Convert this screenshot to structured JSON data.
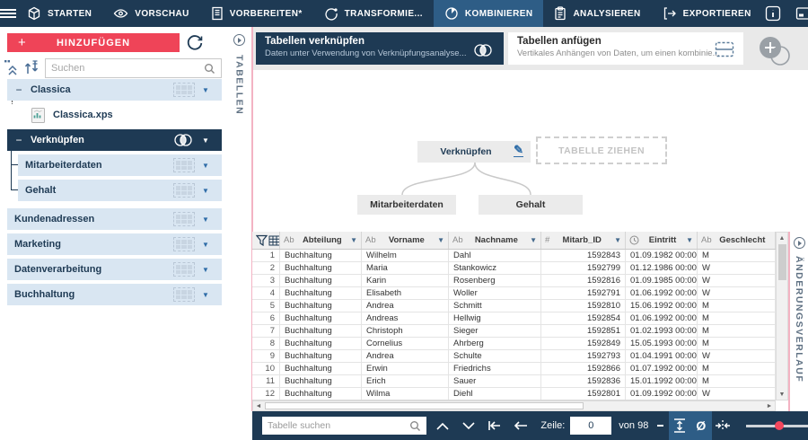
{
  "topbar": {
    "menu": [
      {
        "label": "STARTEN",
        "icon": "cube-icon",
        "active": false
      },
      {
        "label": "VORSCHAU",
        "icon": "eye-icon",
        "active": false
      },
      {
        "label": "VORBEREITEN*",
        "icon": "document-icon",
        "active": false
      },
      {
        "label": "TRANSFORMIE...",
        "icon": "transform-icon",
        "active": false
      },
      {
        "label": "KOMBINIEREN",
        "icon": "combine-icon",
        "active": true
      },
      {
        "label": "ANALYSIEREN",
        "icon": "clipboard-icon",
        "active": false
      },
      {
        "label": "EXPORTIEREN",
        "icon": "export-icon",
        "active": false
      }
    ]
  },
  "sidebar": {
    "add_label": "HINZUFÜGEN",
    "search_placeholder": "Suchen",
    "tree": [
      {
        "label": "Classica"
      },
      {
        "label": "Classica.xps"
      },
      {
        "label": "Verknüpfen"
      },
      {
        "label": "Mitarbeiterdaten"
      },
      {
        "label": "Gehalt"
      },
      {
        "label": "Kundenadressen"
      },
      {
        "label": "Marketing"
      },
      {
        "label": "Datenverarbeitung"
      },
      {
        "label": "Buchhaltung"
      }
    ]
  },
  "left_tab": "TABELLEN",
  "right_tab": "ÄNDERUNGSVERLAUF",
  "cards": {
    "join_title": "Tabellen verknüpfen",
    "join_subtitle": "Daten unter Verwendung von Verknüpfungsanalyse...",
    "append_title": "Tabellen anfügen",
    "append_subtitle": "Vertikales Anhängen von Daten, um einen kombinie..."
  },
  "join_diagram": {
    "root": "Verknüpfen",
    "drop_zone": "TABELLE ZIEHEN",
    "children": [
      "Mitarbeiterdaten",
      "Gehalt"
    ]
  },
  "table": {
    "headers": [
      {
        "prefix": "",
        "name": "",
        "type": "rownum"
      },
      {
        "prefix": "Ab",
        "name": "Abteilung",
        "arrow": true
      },
      {
        "prefix": "Ab",
        "name": "Vorname",
        "arrow": true
      },
      {
        "prefix": "Ab",
        "name": "Nachname",
        "arrow": true
      },
      {
        "prefix": "#",
        "name": "Mitarb_ID",
        "arrow": true
      },
      {
        "prefix": "clock",
        "name": "Eintritt",
        "arrow": true
      },
      {
        "prefix": "Ab",
        "name": "Geschlecht",
        "arrow": false
      }
    ],
    "rows": [
      [
        "1",
        "Buchhaltung",
        "Wilhelm",
        "Dahl",
        "1592843",
        "01.09.1982 00:00:00",
        "M"
      ],
      [
        "2",
        "Buchhaltung",
        "Maria",
        "Stankowicz",
        "1592799",
        "01.12.1986 00:00:00",
        "W"
      ],
      [
        "3",
        "Buchhaltung",
        "Karin",
        "Rosenberg",
        "1592816",
        "01.09.1985 00:00:00",
        "W"
      ],
      [
        "4",
        "Buchhaltung",
        "Elisabeth",
        "Woller",
        "1592791",
        "01.06.1992 00:00:00",
        "W"
      ],
      [
        "5",
        "Buchhaltung",
        "Andrea",
        "Schmitt",
        "1592810",
        "15.06.1992 00:00:00",
        "M"
      ],
      [
        "6",
        "Buchhaltung",
        "Andreas",
        "Hellwig",
        "1592854",
        "01.06.1992 00:00:00",
        "M"
      ],
      [
        "7",
        "Buchhaltung",
        "Christoph",
        "Sieger",
        "1592851",
        "01.02.1993 00:00:00",
        "M"
      ],
      [
        "8",
        "Buchhaltung",
        "Cornelius",
        "Ahrberg",
        "1592849",
        "15.05.1993 00:00:00",
        "M"
      ],
      [
        "9",
        "Buchhaltung",
        "Andrea",
        "Schulte",
        "1592793",
        "01.04.1991 00:00:00",
        "W"
      ],
      [
        "10",
        "Buchhaltung",
        "Erwin",
        "Friedrichs",
        "1592866",
        "01.07.1992 00:00:00",
        "M"
      ],
      [
        "11",
        "Buchhaltung",
        "Erich",
        "Sauer",
        "1592836",
        "15.01.1992 00:00:00",
        "M"
      ],
      [
        "12",
        "Buchhaltung",
        "Wilma",
        "Diehl",
        "1592801",
        "01.09.1992 00:00:00",
        "W"
      ]
    ]
  },
  "toolbar": {
    "search_placeholder": "Tabelle suchen",
    "row_label": "Zeile:",
    "row_value": "0",
    "row_total": "von 98"
  },
  "colors": {
    "navy": "#1e3a54",
    "active_tab": "#2e5d86",
    "accent_red": "#ef4458",
    "row_light": "#d9e6f2",
    "pink_divider": "#f3b3c3",
    "slider_dot": "#f4475d"
  }
}
